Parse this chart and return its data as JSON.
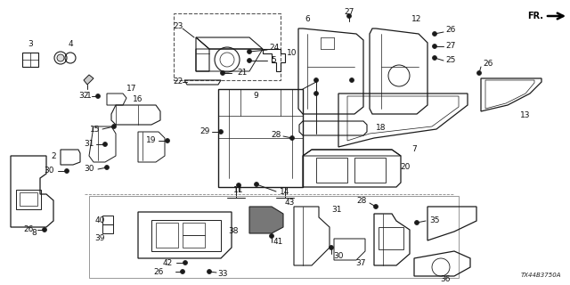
{
  "bg_color": "#ffffff",
  "diagram_code": "TX44B3750A",
  "fig_w": 6.4,
  "fig_h": 3.2,
  "dpi": 100
}
